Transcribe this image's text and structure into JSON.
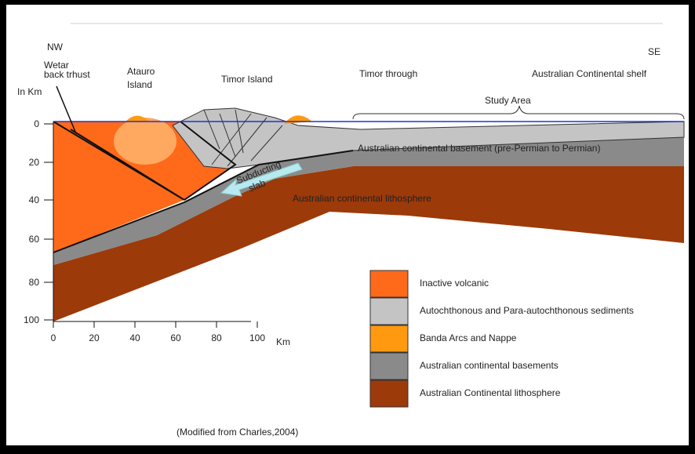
{
  "labels": {
    "nw": "NW",
    "se": "SE",
    "wetar": [
      "Wetar",
      "back trhust"
    ],
    "atauro": [
      "Atauro",
      "Island"
    ],
    "timor_island": "Timor Island",
    "timor_through": "Timor through",
    "shelf": "Australian Continental shelf",
    "study_area": "Study Area",
    "basement": "Australian continental basement (pre-Permian to Permian)",
    "lithosphere": "Australian continental lithosphere",
    "slab": [
      "Subducting",
      "slab"
    ]
  },
  "y_axis": {
    "label": "In Km",
    "ticks": [
      "0",
      "20",
      "40",
      "60",
      "80",
      "100"
    ]
  },
  "x_axis": {
    "label": "Km",
    "ticks": [
      "0",
      "20",
      "40",
      "60",
      "80",
      "100"
    ]
  },
  "legend": [
    {
      "label": "Inactive volcanic",
      "color": "#ff6a1a"
    },
    {
      "label": "Autochthonous and Para-autochthonous  sediments",
      "color": "#c4c4c4"
    },
    {
      "label": "Banda Arcs and Nappe",
      "color": "#ff9a10"
    },
    {
      "label": "Australian continental basements",
      "color": "#8a8a8a"
    },
    {
      "label": "Australian Continental lithosphere",
      "color": "#9c3a0a"
    }
  ],
  "caption": "(Modified from Charles,2004)"
}
